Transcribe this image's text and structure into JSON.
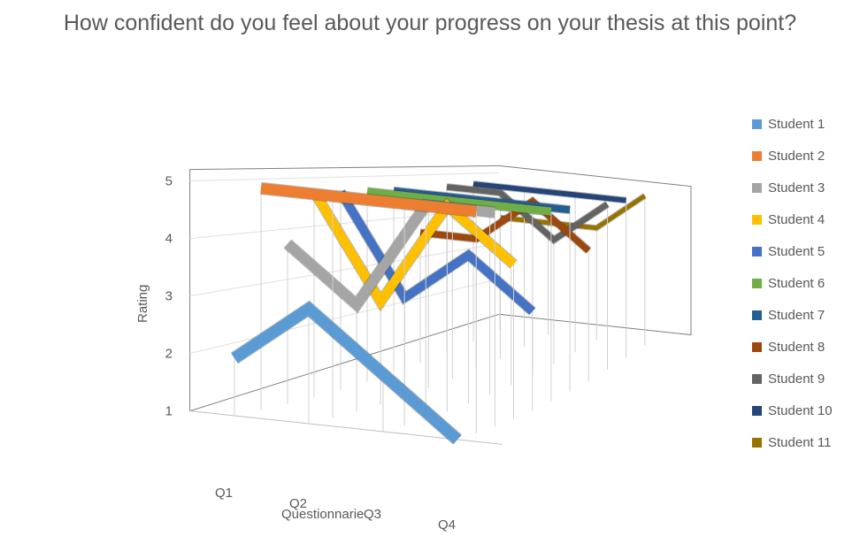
{
  "chart_data": {
    "type": "line",
    "subtype": "3d-line",
    "title": "How confident do you feel about your progress on your thesis at this point?",
    "xlabel": "Questionnarie",
    "ylabel": "Rating",
    "categories": [
      "Q1",
      "Q2",
      "Q3",
      "Q4"
    ],
    "yticks": [
      "1",
      "2",
      "3",
      "4",
      "5"
    ],
    "ylim": [
      1,
      5
    ],
    "legend_position": "right",
    "series": [
      {
        "name": "Student 1",
        "color": "#5B9BD5",
        "values": [
          2,
          3,
          2,
          1
        ]
      },
      {
        "name": "Student 2",
        "color": "#ED7D31",
        "values": [
          5,
          5,
          5,
          5
        ]
      },
      {
        "name": "Student 3",
        "color": "#A5A5A5",
        "values": [
          4,
          3,
          5,
          5
        ]
      },
      {
        "name": "Student 4",
        "color": "#FFC000",
        "values": [
          5,
          3,
          5,
          4
        ]
      },
      {
        "name": "Student 5",
        "color": "#4472C4",
        "values": [
          5,
          3,
          4,
          3
        ]
      },
      {
        "name": "Student 6",
        "color": "#70AD47",
        "values": [
          5,
          5,
          5,
          5
        ]
      },
      {
        "name": "Student 7",
        "color": "#255E91",
        "values": [
          5,
          5,
          5,
          5
        ]
      },
      {
        "name": "Student 8",
        "color": "#9E480E",
        "values": [
          4,
          4,
          5,
          4
        ]
      },
      {
        "name": "Student 9",
        "color": "#636363",
        "values": [
          5,
          5,
          4,
          5
        ]
      },
      {
        "name": "Student 10",
        "color": "#264478",
        "values": [
          5,
          5,
          5,
          5
        ]
      },
      {
        "name": "Student 11",
        "color": "#997300",
        "values": [
          4,
          4,
          4,
          5
        ]
      }
    ]
  }
}
